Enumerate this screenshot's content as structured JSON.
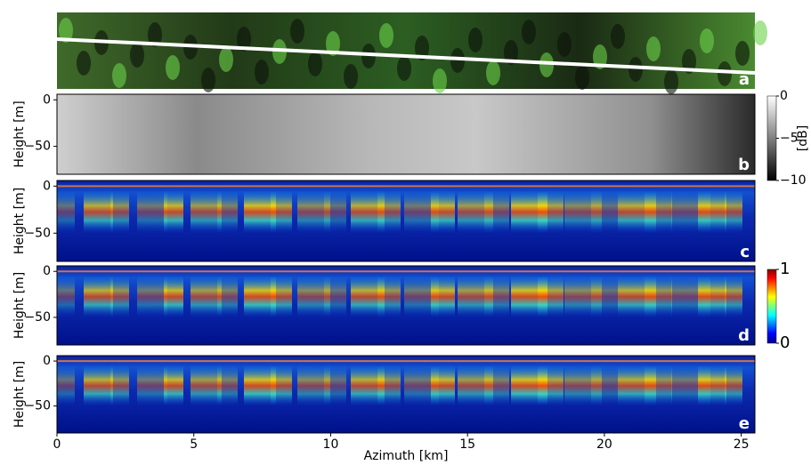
{
  "chart_data": [
    {
      "type": "image",
      "label": "a"
    },
    {
      "type": "heatmap",
      "label": "b",
      "colormap": "gray",
      "ylabel": "Height [m]",
      "ylim": [
        -80,
        6
      ],
      "yticks": [
        0,
        {
          "value": -50,
          "label": "−50"
        }
      ],
      "colorbar": {
        "label": "[dB]",
        "lim": [
          -10,
          0
        ],
        "ticks": [
          0,
          {
            "value": -5,
            "label": "−5"
          },
          {
            "value": -10,
            "label": "−10"
          }
        ]
      }
    },
    {
      "type": "heatmap",
      "label": "c",
      "colormap": "jet",
      "ylabel": "Height [m]",
      "ylim": [
        -80,
        6
      ],
      "yticks": [
        0,
        {
          "value": -50,
          "label": "−50"
        }
      ]
    },
    {
      "type": "heatmap",
      "label": "d",
      "colormap": "jet",
      "ylabel": "Height [m]",
      "ylim": [
        -80,
        6
      ],
      "yticks": [
        0,
        {
          "value": -50,
          "label": "−50"
        }
      ],
      "colorbar": {
        "lim": [
          0,
          1
        ],
        "ticks": [
          1,
          0
        ]
      }
    },
    {
      "type": "heatmap",
      "label": "e",
      "colormap": "jet",
      "ylabel": "Height [m]",
      "ylim": [
        -80,
        6
      ],
      "yticks": [
        0,
        {
          "value": -50,
          "label": "−50"
        }
      ],
      "xlabel": "Azimuth [km]",
      "xlim": [
        0,
        25.5
      ],
      "xticks": [
        0,
        5,
        10,
        15,
        20,
        25
      ]
    }
  ]
}
